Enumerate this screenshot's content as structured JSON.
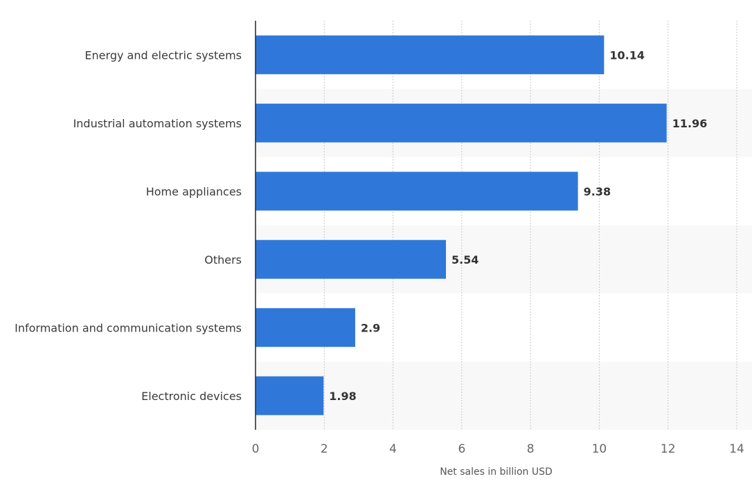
{
  "chart_data": {
    "type": "bar",
    "orientation": "horizontal",
    "categories": [
      "Energy and electric systems",
      "Industrial automation systems",
      "Home appliances",
      "Others",
      "Information and communication systems",
      "Electronic devices"
    ],
    "values": [
      10.14,
      11.96,
      9.38,
      5.54,
      2.9,
      1.98
    ],
    "value_labels": [
      "10.14",
      "11.96",
      "9.38",
      "5.54",
      "2.9",
      "1.98"
    ],
    "xlabel": "Net sales in billion USD",
    "ylabel": "",
    "xlim": [
      0,
      14
    ],
    "ticks": [
      0,
      2,
      4,
      6,
      8,
      10,
      12,
      14
    ],
    "tick_labels": [
      "0",
      "2",
      "4",
      "6",
      "8",
      "10",
      "12",
      "14"
    ],
    "grid": true,
    "colors": {
      "bar": "#2f78d9",
      "band": "#f8f8f8",
      "grid": "#c8c8c8",
      "axis": "#222222"
    }
  }
}
